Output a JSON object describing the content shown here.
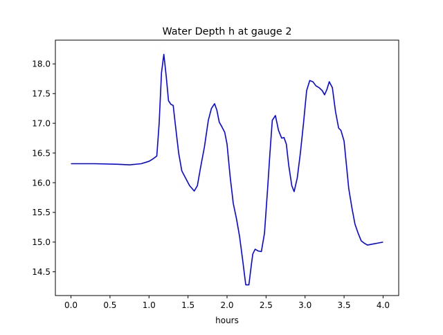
{
  "chart_data": {
    "type": "line",
    "title": "Water Depth h at gauge 2",
    "xlabel": "hours",
    "ylabel": "",
    "xlim": [
      -0.2,
      4.2
    ],
    "ylim": [
      14.1,
      18.4
    ],
    "xticks": [
      0.0,
      0.5,
      1.0,
      1.5,
      2.0,
      2.5,
      3.0,
      3.5,
      4.0
    ],
    "xtick_labels": [
      "0.0",
      "0.5",
      "1.0",
      "1.5",
      "2.0",
      "2.5",
      "3.0",
      "3.5",
      "4.0"
    ],
    "yticks": [
      14.5,
      15.0,
      15.5,
      16.0,
      16.5,
      17.0,
      17.5,
      18.0
    ],
    "ytick_labels": [
      "14.5",
      "15.0",
      "15.5",
      "16.0",
      "16.5",
      "17.0",
      "17.5",
      "18.0"
    ],
    "grid": false,
    "series": [
      {
        "color": "#0000ff",
        "x": [
          0.0,
          0.3,
          0.6,
          0.75,
          0.9,
          1.0,
          1.05,
          1.1,
          1.13,
          1.16,
          1.19,
          1.22,
          1.25,
          1.28,
          1.31,
          1.34,
          1.38,
          1.42,
          1.46,
          1.52,
          1.58,
          1.62,
          1.66,
          1.71,
          1.76,
          1.8,
          1.84,
          1.87,
          1.9,
          1.93,
          1.97,
          2.0,
          2.04,
          2.08,
          2.12,
          2.16,
          2.2,
          2.24,
          2.28,
          2.31,
          2.33,
          2.36,
          2.4,
          2.44,
          2.48,
          2.52,
          2.55,
          2.58,
          2.62,
          2.66,
          2.7,
          2.73,
          2.76,
          2.79,
          2.83,
          2.86,
          2.9,
          2.94,
          2.98,
          3.02,
          3.06,
          3.1,
          3.14,
          3.18,
          3.22,
          3.25,
          3.28,
          3.31,
          3.35,
          3.39,
          3.43,
          3.46,
          3.5,
          3.53,
          3.56,
          3.6,
          3.64,
          3.68,
          3.72,
          3.76,
          3.8,
          3.84,
          3.88,
          3.92,
          3.96,
          4.0
        ],
        "y": [
          16.32,
          16.32,
          16.31,
          16.3,
          16.32,
          16.36,
          16.4,
          16.45,
          17.0,
          17.85,
          18.16,
          17.8,
          17.38,
          17.32,
          17.3,
          16.95,
          16.5,
          16.2,
          16.1,
          15.95,
          15.86,
          15.95,
          16.25,
          16.6,
          17.05,
          17.25,
          17.33,
          17.22,
          17.02,
          16.95,
          16.85,
          16.65,
          16.1,
          15.65,
          15.4,
          15.1,
          14.7,
          14.28,
          14.28,
          14.6,
          14.8,
          14.88,
          14.85,
          14.84,
          15.15,
          15.9,
          16.5,
          17.05,
          17.13,
          16.88,
          16.75,
          16.76,
          16.65,
          16.3,
          15.95,
          15.85,
          16.08,
          16.5,
          17.0,
          17.55,
          17.72,
          17.7,
          17.63,
          17.6,
          17.55,
          17.48,
          17.57,
          17.7,
          17.6,
          17.2,
          16.92,
          16.88,
          16.7,
          16.3,
          15.9,
          15.58,
          15.3,
          15.15,
          15.02,
          14.98,
          14.95,
          14.96,
          14.97,
          14.98,
          14.99,
          15.0
        ]
      }
    ]
  }
}
